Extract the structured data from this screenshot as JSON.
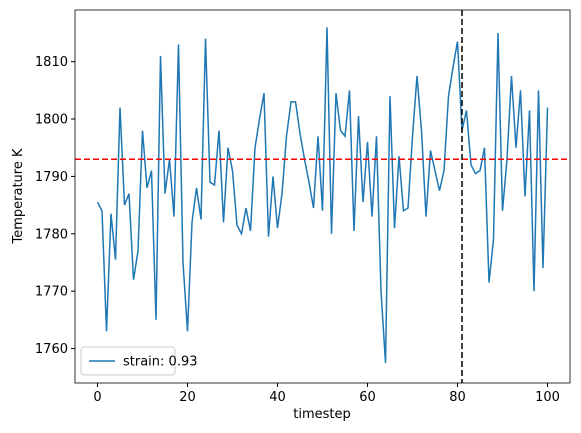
{
  "chart_data": {
    "type": "line",
    "x_label": "timestep",
    "y_label": "Temperature K",
    "x": [
      0,
      1,
      2,
      3,
      4,
      5,
      6,
      7,
      8,
      9,
      10,
      11,
      12,
      13,
      14,
      15,
      16,
      17,
      18,
      19,
      20,
      21,
      22,
      23,
      24,
      25,
      26,
      27,
      28,
      29,
      30,
      31,
      32,
      33,
      34,
      35,
      36,
      37,
      38,
      39,
      40,
      41,
      42,
      43,
      44,
      45,
      46,
      47,
      48,
      49,
      50,
      51,
      52,
      53,
      54,
      55,
      56,
      57,
      58,
      59,
      60,
      61,
      62,
      63,
      64,
      65,
      66,
      67,
      68,
      69,
      70,
      71,
      72,
      73,
      74,
      75,
      76,
      77,
      78,
      79,
      80,
      81,
      82,
      83,
      84,
      85,
      86,
      87,
      88,
      89,
      90,
      91,
      92,
      93,
      94,
      95,
      96,
      97,
      98,
      99,
      100
    ],
    "series": [
      {
        "name": "strain: 0.93",
        "color": "#1f77b4",
        "values": [
          1785.5,
          1784,
          1763,
          1783.5,
          1775.5,
          1802,
          1785,
          1787,
          1772,
          1777,
          1798,
          1788,
          1791,
          1765,
          1811,
          1787,
          1793,
          1783,
          1813,
          1775,
          1763,
          1782,
          1788,
          1782.5,
          1814,
          1789,
          1788.5,
          1798,
          1782,
          1795,
          1791,
          1781.5,
          1780,
          1784.5,
          1780.5,
          1795,
          1800,
          1804.5,
          1779.5,
          1790,
          1781,
          1787,
          1797,
          1803,
          1803,
          1797.5,
          1793,
          1789,
          1784.5,
          1797,
          1784,
          1816,
          1780,
          1804.5,
          1798,
          1797,
          1805,
          1780.5,
          1800.5,
          1785.5,
          1796,
          1783,
          1797,
          1770,
          1757.5,
          1804,
          1781,
          1793.5,
          1784,
          1784.5,
          1797,
          1807.5,
          1798,
          1783,
          1794.5,
          1791,
          1787.5,
          1791,
          1804,
          1809,
          1813.5,
          1798,
          1801.5,
          1792,
          1790.5,
          1791,
          1795,
          1771.5,
          1779,
          1815,
          1784,
          1793,
          1807.5,
          1795,
          1805,
          1786.5,
          1801.5,
          1770,
          1805,
          1774,
          1802
        ]
      }
    ],
    "reference_lines": [
      {
        "axis": "y",
        "value": 1793,
        "color": "#ff0000"
      },
      {
        "axis": "x",
        "value": 81,
        "color": "#000000"
      }
    ],
    "xlim": [
      -5,
      105
    ],
    "xticks": [
      0,
      20,
      40,
      60,
      80,
      100
    ],
    "ylim": [
      1754,
      1819
    ],
    "yticks": [
      1760,
      1770,
      1780,
      1790,
      1800,
      1810
    ],
    "legend": "lower left"
  }
}
